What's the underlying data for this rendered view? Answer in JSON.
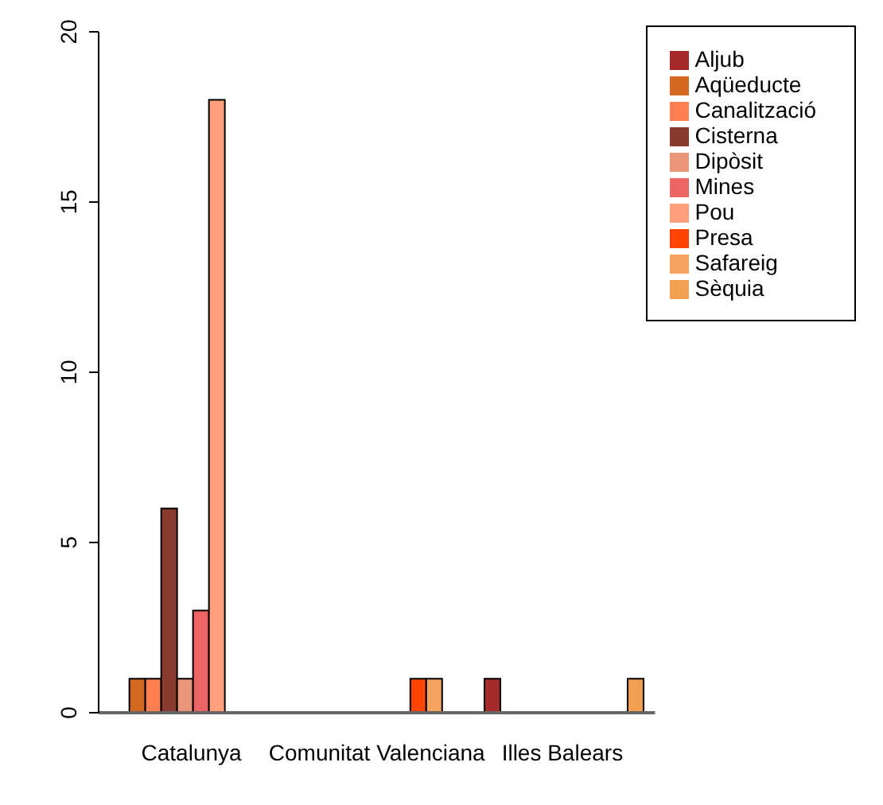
{
  "chart_data": {
    "type": "bar",
    "categories": [
      "Catalunya",
      "Comunitat Valenciana",
      "Illes Balears"
    ],
    "series": [
      {
        "name": "Aljub",
        "color": "#a52a2a",
        "values": [
          0,
          0,
          1
        ]
      },
      {
        "name": "Aqüeducte",
        "color": "#d2691e",
        "values": [
          1,
          0,
          0
        ]
      },
      {
        "name": "Canalització",
        "color": "#ff7f50",
        "values": [
          1,
          0,
          0
        ]
      },
      {
        "name": "Cisterna",
        "color": "#8b3a2f",
        "values": [
          6,
          0,
          0
        ]
      },
      {
        "name": "Dipòsit",
        "color": "#e9967a",
        "values": [
          1,
          0,
          0
        ]
      },
      {
        "name": "Mines",
        "color": "#ee6363",
        "values": [
          3,
          0,
          0
        ]
      },
      {
        "name": "Pou",
        "color": "#ffa07a",
        "values": [
          18,
          0,
          0
        ]
      },
      {
        "name": "Presa",
        "color": "#ff4500",
        "values": [
          0,
          1,
          0
        ]
      },
      {
        "name": "Safareig",
        "color": "#f4a460",
        "values": [
          0,
          1,
          0
        ]
      },
      {
        "name": "Sèquia",
        "color": "#f0a050",
        "values": [
          0,
          0,
          1
        ]
      }
    ],
    "ylim": [
      0,
      20
    ],
    "yticks": [
      0,
      5,
      10,
      15,
      20
    ],
    "legend": "top right",
    "grid": false
  }
}
